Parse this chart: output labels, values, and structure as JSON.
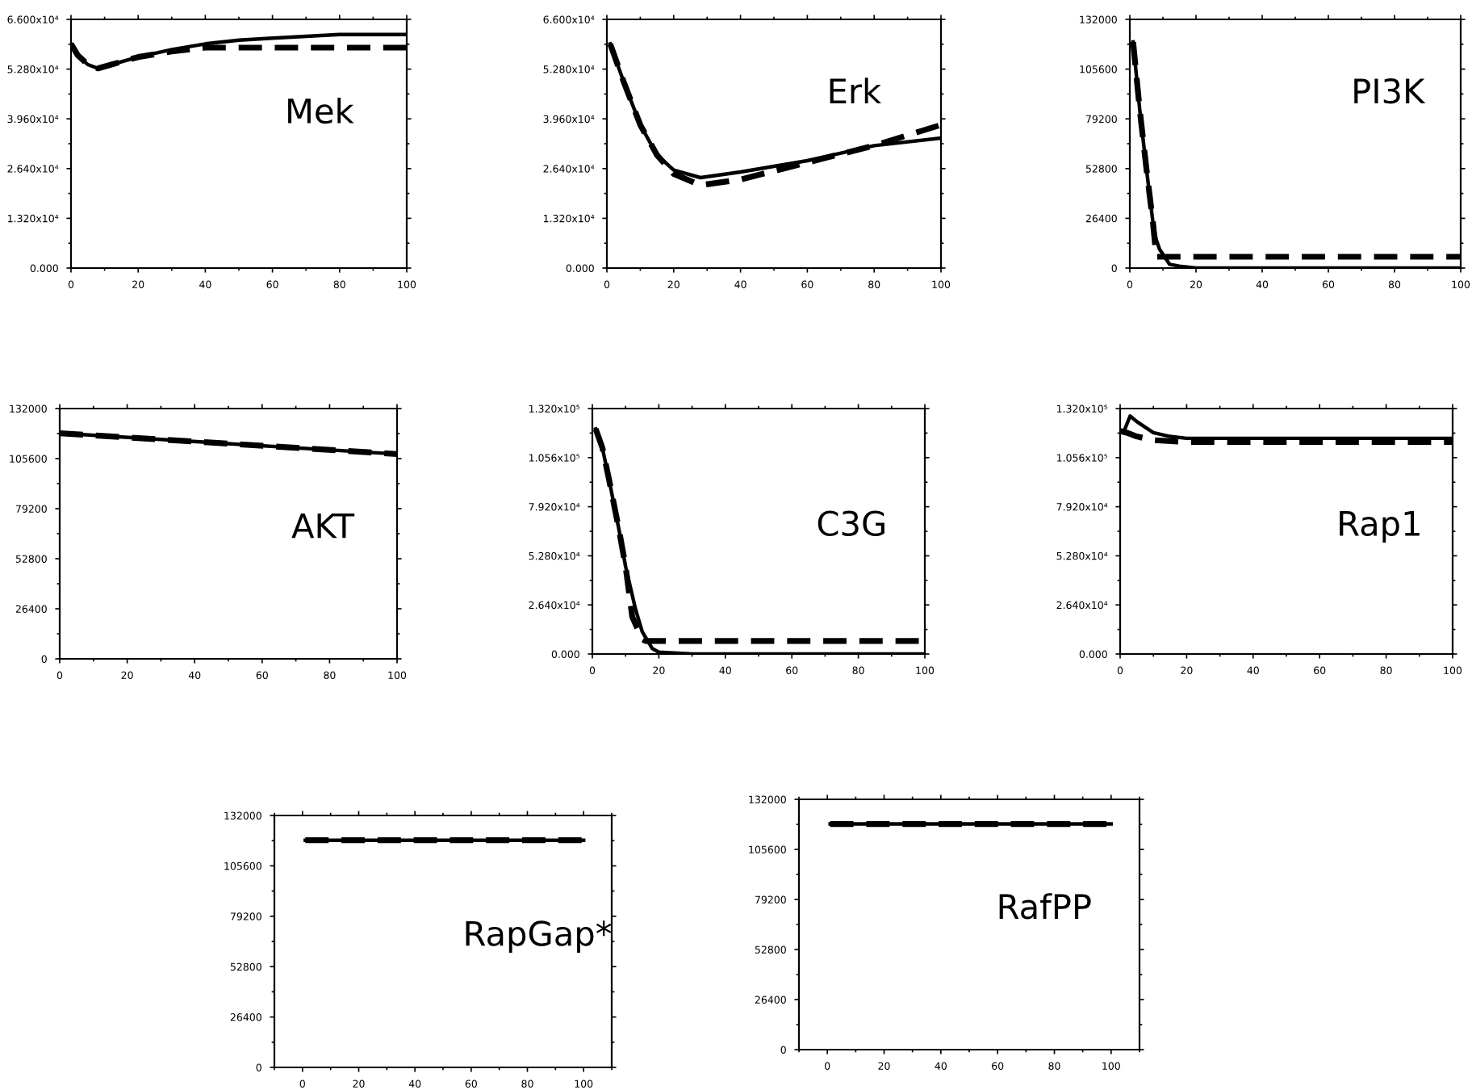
{
  "chart_data": [
    {
      "type": "line",
      "title": "Mek",
      "xlim": [
        0,
        100
      ],
      "xticks": [
        0,
        20,
        40,
        60,
        80,
        100
      ],
      "ylim": [
        0,
        66000
      ],
      "yticks": [
        {
          "value": 0,
          "label": "0.000"
        },
        {
          "value": 13200,
          "label": "1.320x10⁴"
        },
        {
          "value": 26400,
          "label": "2.640x10⁴"
        },
        {
          "value": 39600,
          "label": "3.960x10⁴"
        },
        {
          "value": 52800,
          "label": "5.280x10⁴"
        },
        {
          "value": 66000,
          "label": "6.600x10⁴"
        }
      ],
      "series": [
        {
          "color": "#000000",
          "line_style": "solid",
          "x": [
            0,
            2,
            5,
            8,
            12,
            20,
            30,
            40,
            50,
            60,
            70,
            80,
            90,
            100
          ],
          "values": [
            59500,
            56500,
            54000,
            53000,
            54000,
            56000,
            58000,
            59500,
            60500,
            61000,
            61500,
            62000,
            62000,
            62000
          ]
        },
        {
          "color": "#000000",
          "line_style": "dashed",
          "x": [
            0,
            2,
            5,
            8,
            12,
            20,
            30,
            40,
            50,
            60,
            70,
            80,
            90,
            100
          ],
          "values": [
            59500,
            56500,
            54000,
            53000,
            54000,
            56000,
            57500,
            58500,
            58500,
            58500,
            58500,
            58500,
            58500,
            58500
          ]
        }
      ]
    },
    {
      "type": "line",
      "title": "Erk",
      "xlim": [
        0,
        100
      ],
      "xticks": [
        0,
        20,
        40,
        60,
        80,
        100
      ],
      "ylim": [
        0,
        66000
      ],
      "yticks": [
        {
          "value": 0,
          "label": "0.000"
        },
        {
          "value": 13200,
          "label": "1.320x10⁴"
        },
        {
          "value": 26400,
          "label": "2.640x10⁴"
        },
        {
          "value": 39600,
          "label": "3.960x10⁴"
        },
        {
          "value": 52800,
          "label": "5.280x10⁴"
        },
        {
          "value": 66000,
          "label": "6.600x10⁴"
        }
      ],
      "series": [
        {
          "color": "#000000",
          "line_style": "solid",
          "x": [
            1,
            5,
            10,
            15,
            20,
            28,
            40,
            60,
            80,
            100
          ],
          "values": [
            59500,
            49500,
            38000,
            30000,
            26000,
            24000,
            25500,
            28500,
            32500,
            34500
          ]
        },
        {
          "color": "#000000",
          "line_style": "dashed",
          "x": [
            1,
            5,
            10,
            15,
            20,
            28,
            40,
            60,
            80,
            100
          ],
          "values": [
            59500,
            49500,
            38000,
            30000,
            25000,
            22000,
            23500,
            28000,
            32500,
            38000
          ]
        }
      ]
    },
    {
      "type": "line",
      "title": "PI3K",
      "xlim": [
        0,
        100
      ],
      "xticks": [
        0,
        20,
        40,
        60,
        80,
        100
      ],
      "ylim": [
        0,
        132000
      ],
      "yticks": [
        0,
        26400,
        52800,
        79200,
        105600,
        132000
      ],
      "series": [
        {
          "color": "#000000",
          "line_style": "solid",
          "x": [
            1,
            3,
            5,
            7,
            8,
            9,
            12,
            15,
            20,
            40,
            60,
            80,
            100
          ],
          "values": [
            120000,
            84000,
            53000,
            24000,
            15000,
            10000,
            2000,
            1000,
            0,
            0,
            0,
            0,
            0
          ]
        },
        {
          "color": "#000000",
          "line_style": "dashed",
          "x": [
            1,
            3,
            5,
            7,
            8,
            9,
            12,
            15,
            20,
            40,
            60,
            80,
            100
          ],
          "values": [
            120000,
            84000,
            53000,
            24000,
            6000,
            6000,
            6000,
            6000,
            6000,
            6000,
            6000,
            6000,
            6000
          ]
        }
      ]
    },
    {
      "type": "line",
      "title": "AKT",
      "xlim": [
        0,
        100
      ],
      "xticks": [
        0,
        20,
        40,
        60,
        80,
        100
      ],
      "ylim": [
        0,
        132000
      ],
      "yticks": [
        0,
        26400,
        52800,
        79200,
        105600,
        132000
      ],
      "series": [
        {
          "color": "#000000",
          "line_style": "solid",
          "x": [
            0,
            100
          ],
          "values": [
            119000,
            108000
          ]
        },
        {
          "color": "#000000",
          "line_style": "dashed",
          "x": [
            0,
            100
          ],
          "values": [
            119000,
            108000
          ]
        }
      ]
    },
    {
      "type": "line",
      "title": "C3G",
      "xlim": [
        0,
        100
      ],
      "xticks": [
        0,
        20,
        40,
        60,
        80,
        100
      ],
      "ylim": [
        0,
        132000
      ],
      "yticks": [
        {
          "value": 0,
          "label": "0.000"
        },
        {
          "value": 26400,
          "label": "2.640x10⁴"
        },
        {
          "value": 52800,
          "label": "5.280x10⁴"
        },
        {
          "value": 79200,
          "label": "7.920x10⁴"
        },
        {
          "value": 105600,
          "label": "1.056x10⁵"
        },
        {
          "value": 132000,
          "label": "1.320x10⁵"
        }
      ],
      "series": [
        {
          "color": "#000000",
          "line_style": "solid",
          "x": [
            1,
            3,
            5,
            8,
            10,
            13,
            15,
            18,
            20,
            30,
            50,
            100
          ],
          "values": [
            121000,
            111000,
            94000,
            67000,
            47000,
            24000,
            12000,
            3000,
            1000,
            0,
            0,
            0
          ]
        },
        {
          "color": "#000000",
          "line_style": "dashed",
          "x": [
            1,
            3,
            5,
            8,
            10,
            12,
            15,
            16,
            20,
            30,
            50,
            100
          ],
          "values": [
            121000,
            111000,
            94000,
            67000,
            47000,
            20000,
            8000,
            7000,
            7000,
            7000,
            7000,
            7000
          ]
        }
      ]
    },
    {
      "type": "line",
      "title": "Rap1",
      "xlim": [
        0,
        100
      ],
      "xticks": [
        0,
        20,
        40,
        60,
        80,
        100
      ],
      "ylim": [
        0,
        132000
      ],
      "yticks": [
        {
          "value": 0,
          "label": "0.000"
        },
        {
          "value": 26400,
          "label": "2.640x10⁴"
        },
        {
          "value": 52800,
          "label": "5.280x10⁴"
        },
        {
          "value": 79200,
          "label": "7.920x10⁴"
        },
        {
          "value": 105600,
          "label": "1.056x10⁵"
        },
        {
          "value": 132000,
          "label": "1.320x10⁵"
        }
      ],
      "series": [
        {
          "color": "#000000",
          "line_style": "solid",
          "x": [
            0,
            1,
            3,
            5,
            10,
            15,
            20,
            100
          ],
          "values": [
            120000,
            119000,
            128000,
            125000,
            119000,
            117000,
            116000,
            116000
          ]
        },
        {
          "color": "#000000",
          "line_style": "dashed",
          "x": [
            0,
            2,
            5,
            10,
            20,
            100
          ],
          "values": [
            120000,
            119000,
            117000,
            115000,
            114000,
            114000
          ]
        }
      ]
    },
    {
      "type": "line",
      "title": "RapGap*",
      "xlim": [
        -10,
        110
      ],
      "xticks": [
        0,
        20,
        40,
        60,
        80,
        100
      ],
      "ylim": [
        0,
        132000
      ],
      "yticks": [
        0,
        26400,
        52800,
        79200,
        105600,
        132000
      ],
      "series": [
        {
          "color": "#000000",
          "line_style": "solid",
          "x": [
            1,
            100
          ],
          "values": [
            119000,
            119000
          ]
        },
        {
          "color": "#000000",
          "line_style": "dashed",
          "x": [
            1,
            100
          ],
          "values": [
            119000,
            119000
          ]
        }
      ]
    },
    {
      "type": "line",
      "title": "RafPP",
      "xlim": [
        -10,
        110
      ],
      "xticks": [
        0,
        20,
        40,
        60,
        80,
        100
      ],
      "ylim": [
        0,
        132000
      ],
      "yticks": [
        0,
        26400,
        52800,
        79200,
        105600,
        132000
      ],
      "series": [
        {
          "color": "#000000",
          "line_style": "solid",
          "x": [
            1,
            100
          ],
          "values": [
            119000,
            119000
          ]
        },
        {
          "color": "#000000",
          "line_style": "dashed",
          "x": [
            1,
            100
          ],
          "values": [
            119000,
            119000
          ]
        }
      ]
    }
  ]
}
